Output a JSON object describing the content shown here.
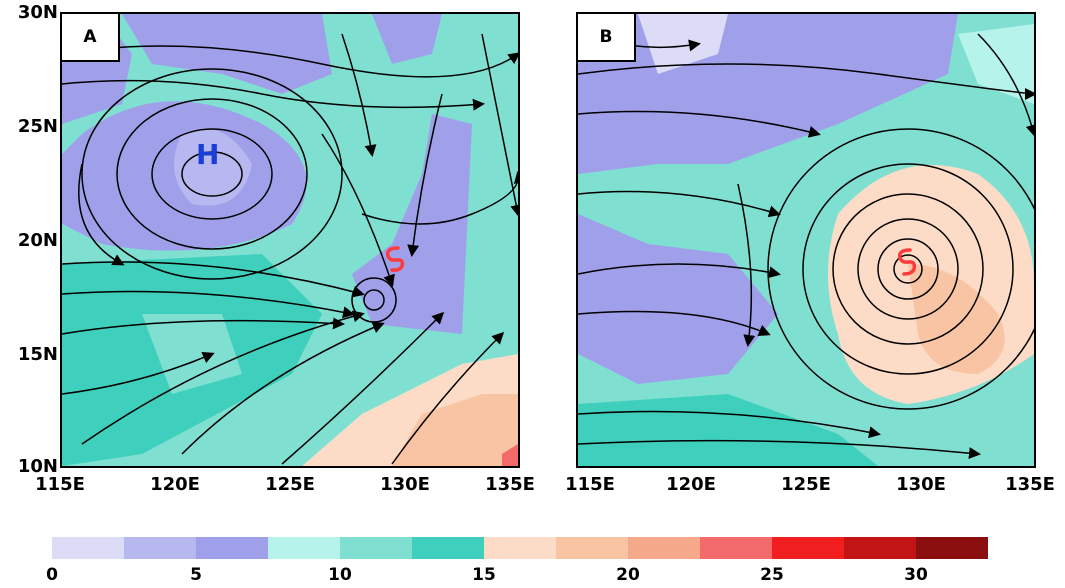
{
  "panels": [
    {
      "label": "A"
    },
    {
      "label": "B"
    }
  ],
  "y_ticks": [
    "30N",
    "25N",
    "20N",
    "15N",
    "10N"
  ],
  "x_ticks_a": [
    "115E",
    "120E",
    "125E",
    "130E",
    "135E"
  ],
  "x_ticks_b": [
    "115E",
    "120E",
    "125E",
    "130E",
    "135E"
  ],
  "markers": {
    "high": "H",
    "high_color": "#1a3fd6",
    "typhoon_icon": "typhoon-symbol-icon",
    "typhoon_color": "#ff3a3a"
  },
  "colorbar": {
    "labels": [
      "0",
      "5",
      "10",
      "15",
      "20",
      "25",
      "30"
    ],
    "colors": [
      "#dcdcf6",
      "#b8b8f0",
      "#9f9fea",
      "#b6f3ea",
      "#7fe0d2",
      "#3fcfbd",
      "#fcdcc6",
      "#f8c4a4",
      "#f5a98a",
      "#f26a6a",
      "#f01e1e",
      "#c21414",
      "#8b0f0f"
    ]
  }
}
